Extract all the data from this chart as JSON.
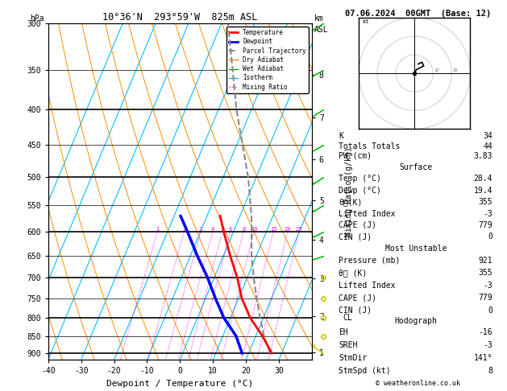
{
  "title_left": "10°36'N  293°59'W  825m ASL",
  "title_right": "07.06.2024  00GMT  (Base: 12)",
  "xlabel": "Dewpoint / Temperature (°C)",
  "ylabel_left": "hPa",
  "isotherm_color": "#00bfff",
  "dry_adiabat_color": "#ff8c00",
  "wet_adiabat_color": "#00aa00",
  "mixing_ratio_color": "#ff00ff",
  "temp_color": "#ff0000",
  "dewp_color": "#0000ff",
  "parcel_color": "#888888",
  "background_color": "#ffffff",
  "mixing_ratio_vals": [
    1,
    2,
    3,
    4,
    5,
    6,
    8,
    10,
    15,
    20,
    25
  ],
  "pressure_levels": [
    300,
    350,
    400,
    450,
    500,
    550,
    600,
    650,
    700,
    750,
    800,
    850,
    900
  ],
  "pressure_major": [
    300,
    400,
    500,
    600,
    700,
    800,
    900
  ],
  "p_min": 300,
  "p_max": 920,
  "T_min": -40,
  "T_max": 40,
  "skew": 38,
  "temperature_profile": {
    "pressure": [
      921,
      900,
      850,
      800,
      750,
      700,
      650,
      600,
      570
    ],
    "temp": [
      28.4,
      27.0,
      22.0,
      16.0,
      11.0,
      7.0,
      2.0,
      -3.0,
      -6.0
    ]
  },
  "dewpoint_profile": {
    "pressure": [
      921,
      900,
      850,
      800,
      750,
      700,
      650,
      600,
      570
    ],
    "dewp": [
      19.4,
      18.0,
      14.0,
      8.0,
      3.0,
      -2.0,
      -8.0,
      -14.0,
      -18.0
    ]
  },
  "parcel_profile": {
    "pressure": [
      921,
      900,
      850,
      800,
      750,
      700,
      650,
      600,
      570,
      500,
      400,
      300
    ],
    "temp": [
      28.4,
      26.5,
      22.5,
      19.0,
      15.5,
      12.0,
      8.5,
      5.5,
      3.5,
      -2.5,
      -14.5,
      -28.0
    ]
  },
  "panel": {
    "K": 34,
    "Totals_Totals": 44,
    "PW_cm": 3.83,
    "surf_temp": 28.4,
    "surf_dewp": 19.4,
    "surf_thetae": 355,
    "surf_li": -3,
    "surf_cape": 779,
    "surf_cin": 0,
    "mu_pressure": 921,
    "mu_thetae": 355,
    "mu_li": -3,
    "mu_cape": 779,
    "mu_cin": 0,
    "hodo_eh": -16,
    "hodo_sreh": -3,
    "hodo_stmdir": "141°",
    "hodo_stmspd": 8
  },
  "wind_barbs_yellow": [
    {
      "p": 921,
      "u": 3,
      "v": -2
    },
    {
      "p": 900,
      "u": 3,
      "v": -2
    },
    {
      "p": 850,
      "u": 2,
      "v": -1
    },
    {
      "p": 800,
      "u": 2,
      "v": -1
    },
    {
      "p": 750,
      "u": 2,
      "v": -1
    },
    {
      "p": 700,
      "u": 2,
      "v": -1
    }
  ],
  "wind_barbs_green": [
    {
      "p": 650,
      "u": 3,
      "v": 1
    },
    {
      "p": 600,
      "u": 4,
      "v": 2
    },
    {
      "p": 550,
      "u": 5,
      "v": 3
    },
    {
      "p": 500,
      "u": 6,
      "v": 4
    },
    {
      "p": 450,
      "u": 7,
      "v": 4
    },
    {
      "p": 400,
      "u": 8,
      "v": 5
    },
    {
      "p": 350,
      "u": 9,
      "v": 5
    },
    {
      "p": 300,
      "u": 10,
      "v": 6
    }
  ]
}
